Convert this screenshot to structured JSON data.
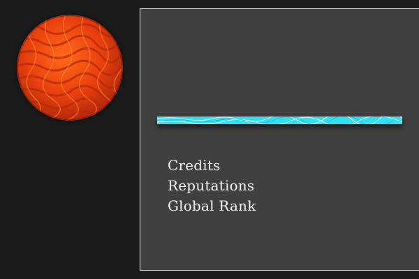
{
  "colors": {
    "background": "#1c1c1c",
    "panel": "#404040",
    "panel_border": "#ececec",
    "text": "#f2f2f2",
    "progress_fill": "#2ee0f0",
    "planet": "#e8400e"
  },
  "avatar": {
    "icon": "planet-icon"
  },
  "progress": {
    "value": 1.0
  },
  "stats": {
    "items": [
      "Credits",
      "Reputations",
      "Global Rank"
    ]
  }
}
